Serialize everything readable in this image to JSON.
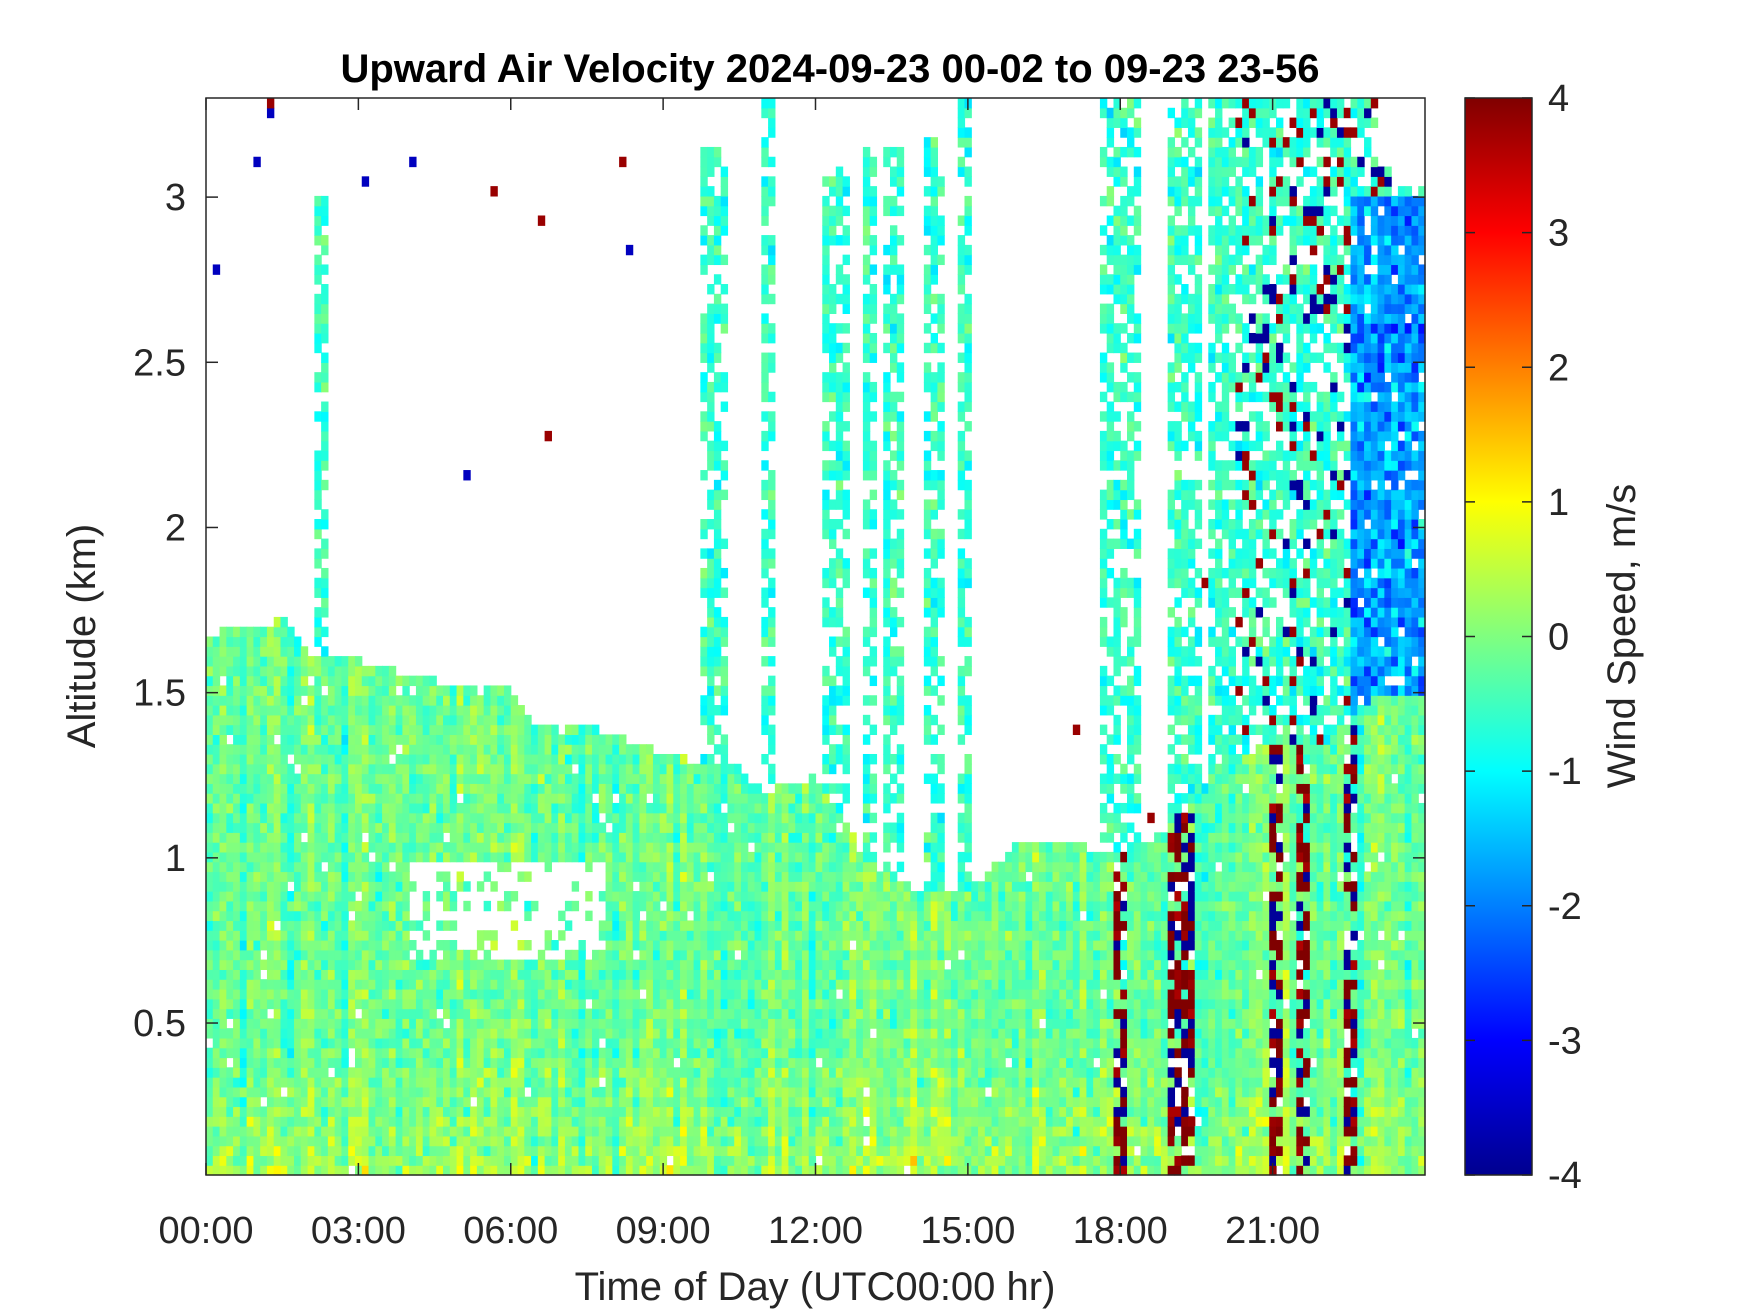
{
  "chart_data": {
    "type": "heatmap",
    "title": "Upward Air Velocity 2024-09-23 00-02 to 09-23 23-56",
    "xlabel": "Time of Day (UTC00:00 hr)",
    "ylabel": "Altitude (km)",
    "colorbar_label": "Wind Speed, m/s",
    "colormap": "jet",
    "x_tick_labels": [
      "00:00",
      "03:00",
      "06:00",
      "09:00",
      "12:00",
      "15:00",
      "18:00",
      "21:00"
    ],
    "x_tick_hours": [
      0,
      3,
      6,
      9,
      12,
      15,
      18,
      21
    ],
    "xlim_hours": [
      0,
      24
    ],
    "y_ticks": [
      0.5,
      1,
      1.5,
      2,
      2.5,
      3
    ],
    "y_tick_labels": [
      "0.5",
      "1",
      "1.5",
      "2",
      "2.5",
      "3"
    ],
    "ylim_km": [
      0.04,
      3.3
    ],
    "clim": [
      -4,
      4
    ],
    "colorbar_ticks": [
      4,
      3,
      2,
      1,
      0,
      -1,
      -2,
      -3,
      -4
    ],
    "colorbar_tick_labels": [
      "4",
      "3",
      "2",
      "1",
      "0",
      "-1",
      "-2",
      "-3",
      "-4"
    ],
    "grid": false,
    "echo_top_km": [
      [
        0.0,
        1.67
      ],
      [
        0.5,
        1.7
      ],
      [
        1.0,
        1.7
      ],
      [
        1.5,
        1.73
      ],
      [
        2.0,
        1.62
      ],
      [
        3.0,
        1.6
      ],
      [
        4.0,
        1.56
      ],
      [
        5.0,
        1.52
      ],
      [
        6.0,
        1.52
      ],
      [
        6.5,
        1.4
      ],
      [
        7.5,
        1.4
      ],
      [
        8.5,
        1.35
      ],
      [
        9.5,
        1.3
      ],
      [
        10.5,
        1.28
      ],
      [
        11.0,
        1.2
      ],
      [
        12.0,
        1.25
      ],
      [
        13.0,
        1.0
      ],
      [
        14.0,
        0.9
      ],
      [
        15.0,
        0.9
      ],
      [
        16.0,
        1.05
      ],
      [
        17.0,
        1.05
      ],
      [
        18.0,
        1.0
      ],
      [
        19.0,
        1.1
      ],
      [
        20.0,
        1.3
      ],
      [
        21.0,
        1.35
      ],
      [
        22.0,
        1.35
      ],
      [
        23.0,
        1.5
      ],
      [
        24.0,
        1.5
      ]
    ],
    "columns_above_echo_top": [
      [
        2.2,
        2.4,
        3.0
      ],
      [
        9.8,
        10.2,
        3.15
      ],
      [
        10.9,
        11.2,
        3.3
      ],
      [
        12.2,
        12.6,
        3.1
      ],
      [
        12.9,
        13.2,
        3.15
      ],
      [
        13.3,
        13.7,
        3.15
      ],
      [
        14.2,
        14.5,
        3.2
      ],
      [
        14.8,
        15.1,
        3.3
      ],
      [
        17.6,
        18.1,
        3.3
      ],
      [
        18.1,
        18.4,
        3.3
      ],
      [
        19.0,
        19.6,
        3.3
      ],
      [
        19.7,
        20.2,
        3.3
      ],
      [
        20.2,
        20.6,
        3.3
      ],
      [
        20.6,
        21.0,
        3.3
      ],
      [
        21.0,
        21.4,
        3.3
      ],
      [
        21.4,
        21.8,
        3.3
      ],
      [
        21.8,
        22.2,
        3.3
      ],
      [
        22.2,
        22.6,
        3.3
      ],
      [
        22.6,
        23.0,
        3.3
      ],
      [
        23.0,
        23.5,
        3.1
      ],
      [
        23.5,
        24.0,
        3.05
      ]
    ],
    "gap_regions": [
      [
        4.0,
        7.8,
        0.7,
        1.0
      ]
    ],
    "strong_updraft_zones": [
      [
        17.9,
        18.1
      ],
      [
        18.9,
        19.4
      ],
      [
        21.0,
        21.2
      ],
      [
        21.5,
        21.7
      ],
      [
        22.4,
        22.6
      ]
    ],
    "strong_downdraft_region": [
      22.5,
      24.0,
      1.3,
      3.0
    ]
  }
}
